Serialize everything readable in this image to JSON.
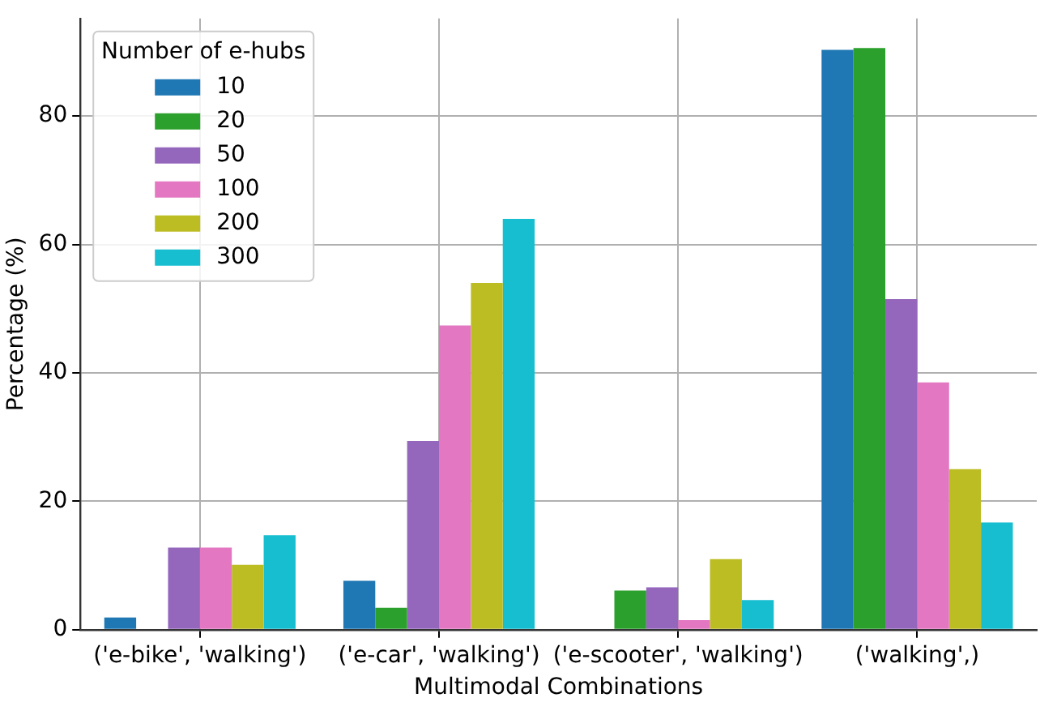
{
  "chart_data": {
    "type": "bar",
    "xlabel": "Multimodal Combinations",
    "ylabel": "Percentage (%)",
    "legend_title": "Number of e-hubs",
    "categories": [
      "('e-bike', 'walking')",
      "('e-car', 'walking')",
      "('e-scooter', 'walking')",
      "('walking',)"
    ],
    "series": [
      {
        "name": "10",
        "color": "#1f77b4",
        "values": [
          1.9,
          7.6,
          null,
          90.3
        ]
      },
      {
        "name": "20",
        "color": "#2ca02c",
        "values": [
          null,
          3.4,
          6.1,
          90.6
        ]
      },
      {
        "name": "50",
        "color": "#9467bd",
        "values": [
          12.8,
          29.4,
          6.6,
          51.5
        ]
      },
      {
        "name": "100",
        "color": "#e377c2",
        "values": [
          12.8,
          47.4,
          1.5,
          38.5
        ]
      },
      {
        "name": "200",
        "color": "#bcbd22",
        "values": [
          10.1,
          54.0,
          11.0,
          25.0
        ]
      },
      {
        "name": "300",
        "color": "#17becf",
        "values": [
          14.7,
          64.0,
          4.6,
          16.7
        ]
      }
    ],
    "ylim": [
      0,
      95.2
    ],
    "yticks": [
      0,
      20,
      40,
      60,
      80
    ],
    "grid": true,
    "legend": "top left"
  }
}
